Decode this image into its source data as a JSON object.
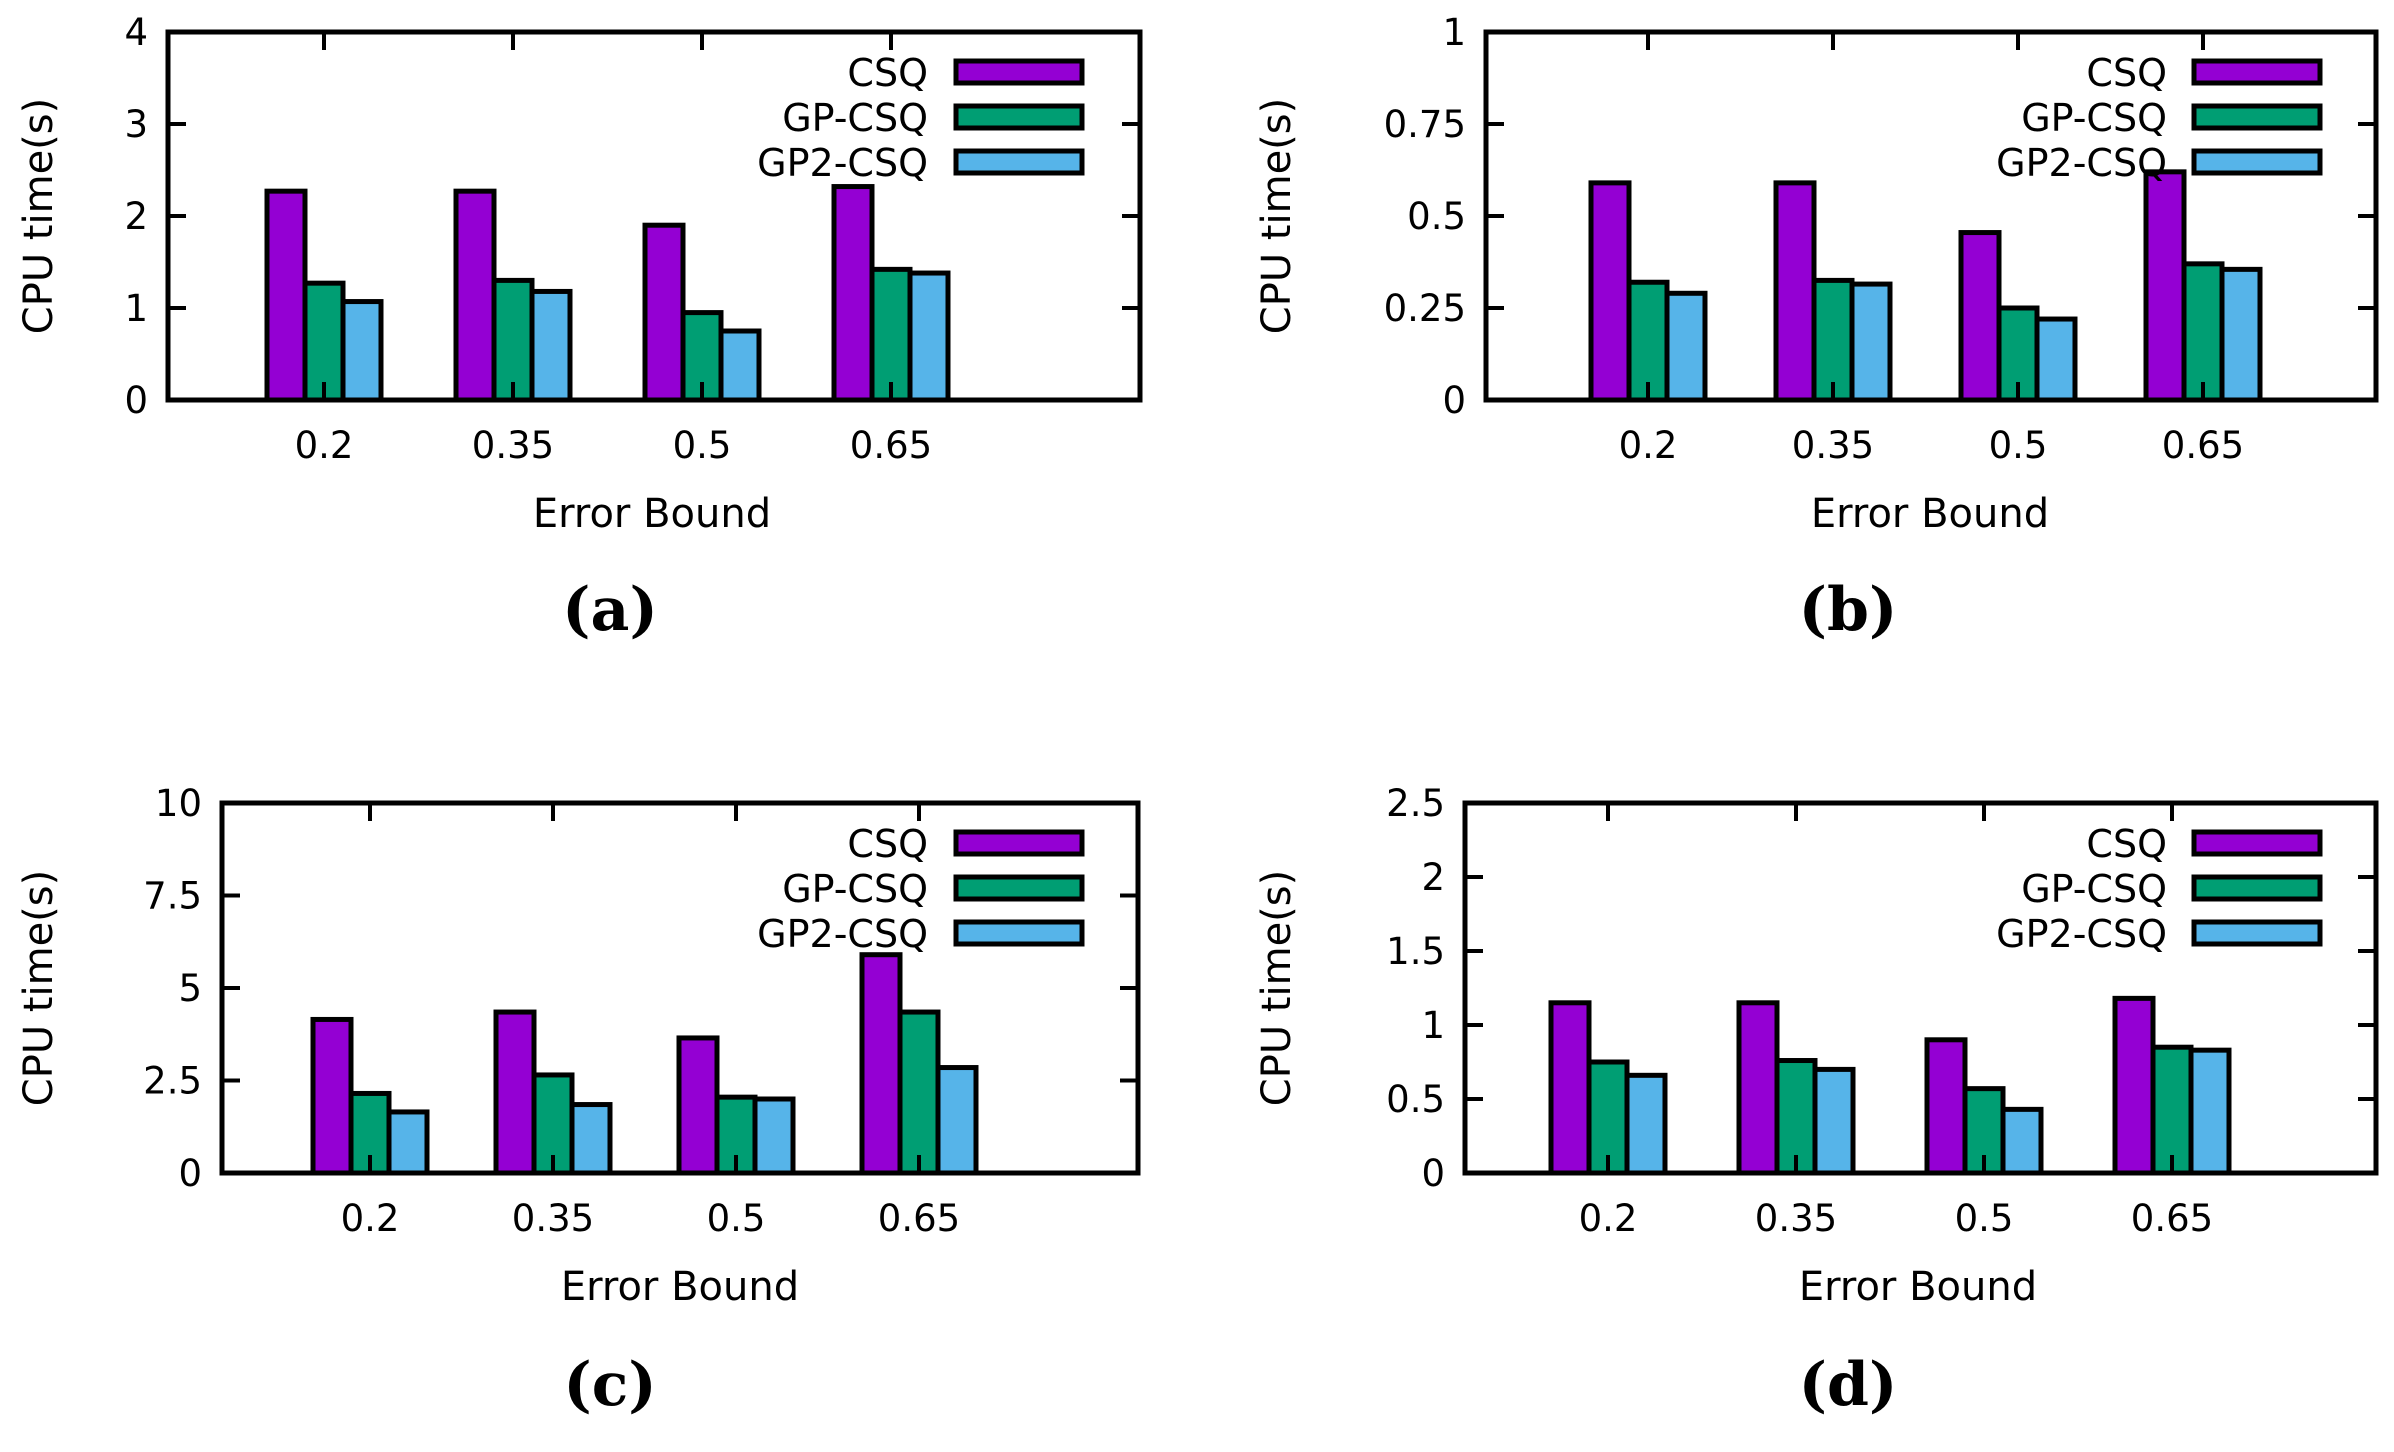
{
  "chart_data": [
    {
      "type": "bar",
      "caption": "(a)",
      "categories": [
        "0.2",
        "0.35",
        "0.5",
        "0.65"
      ],
      "series": [
        {
          "name": "CSQ",
          "color": "#9400d3",
          "values": [
            2.27,
            2.27,
            1.9,
            2.32
          ]
        },
        {
          "name": "GP-CSQ",
          "color": "#009e73",
          "values": [
            1.27,
            1.3,
            0.95,
            1.42
          ]
        },
        {
          "name": "GP2-CSQ",
          "color": "#56b4e9",
          "values": [
            1.07,
            1.18,
            0.75,
            1.38
          ]
        }
      ],
      "xlabel": "Error Bound",
      "ylabel": "CPU time(s)",
      "ylim": [
        0,
        4
      ],
      "yticks": [
        "0",
        "1",
        "2",
        "3",
        "4"
      ],
      "grid": false,
      "legend": "top-right"
    },
    {
      "type": "bar",
      "caption": "(b)",
      "categories": [
        "0.2",
        "0.35",
        "0.5",
        "0.65"
      ],
      "series": [
        {
          "name": "CSQ",
          "color": "#9400d3",
          "values": [
            0.59,
            0.59,
            0.455,
            0.62
          ]
        },
        {
          "name": "GP-CSQ",
          "color": "#009e73",
          "values": [
            0.32,
            0.325,
            0.25,
            0.37
          ]
        },
        {
          "name": "GP2-CSQ",
          "color": "#56b4e9",
          "values": [
            0.29,
            0.315,
            0.22,
            0.355
          ]
        }
      ],
      "xlabel": "Error Bound",
      "ylabel": "CPU time(s)",
      "ylim": [
        0,
        1
      ],
      "yticks": [
        "0",
        "0.25",
        "0.5",
        "0.75",
        "1"
      ],
      "grid": false,
      "legend": "top-right"
    },
    {
      "type": "bar",
      "caption": "(c)",
      "categories": [
        "0.2",
        "0.35",
        "0.5",
        "0.65"
      ],
      "series": [
        {
          "name": "CSQ",
          "color": "#9400d3",
          "values": [
            4.15,
            4.35,
            3.65,
            5.9
          ]
        },
        {
          "name": "GP-CSQ",
          "color": "#009e73",
          "values": [
            2.15,
            2.65,
            2.05,
            4.35
          ]
        },
        {
          "name": "GP2-CSQ",
          "color": "#56b4e9",
          "values": [
            1.65,
            1.85,
            2.0,
            2.85
          ]
        }
      ],
      "xlabel": "Error Bound",
      "ylabel": "CPU time(s)",
      "ylim": [
        0,
        10
      ],
      "yticks": [
        "0",
        "2.5",
        "5",
        "7.5",
        "10"
      ],
      "grid": false,
      "legend": "top-right"
    },
    {
      "type": "bar",
      "caption": "(d)",
      "categories": [
        "0.2",
        "0.35",
        "0.5",
        "0.65"
      ],
      "series": [
        {
          "name": "CSQ",
          "color": "#9400d3",
          "values": [
            1.15,
            1.15,
            0.9,
            1.18
          ]
        },
        {
          "name": "GP-CSQ",
          "color": "#009e73",
          "values": [
            0.75,
            0.76,
            0.57,
            0.85
          ]
        },
        {
          "name": "GP2-CSQ",
          "color": "#56b4e9",
          "values": [
            0.66,
            0.7,
            0.43,
            0.83
          ]
        }
      ],
      "xlabel": "Error Bound",
      "ylabel": "CPU time(s)",
      "ylim": [
        0,
        2.5
      ],
      "yticks": [
        "0",
        "0.5",
        "1",
        "1.5",
        "2",
        "2.5"
      ],
      "grid": false,
      "legend": "top-right"
    }
  ]
}
